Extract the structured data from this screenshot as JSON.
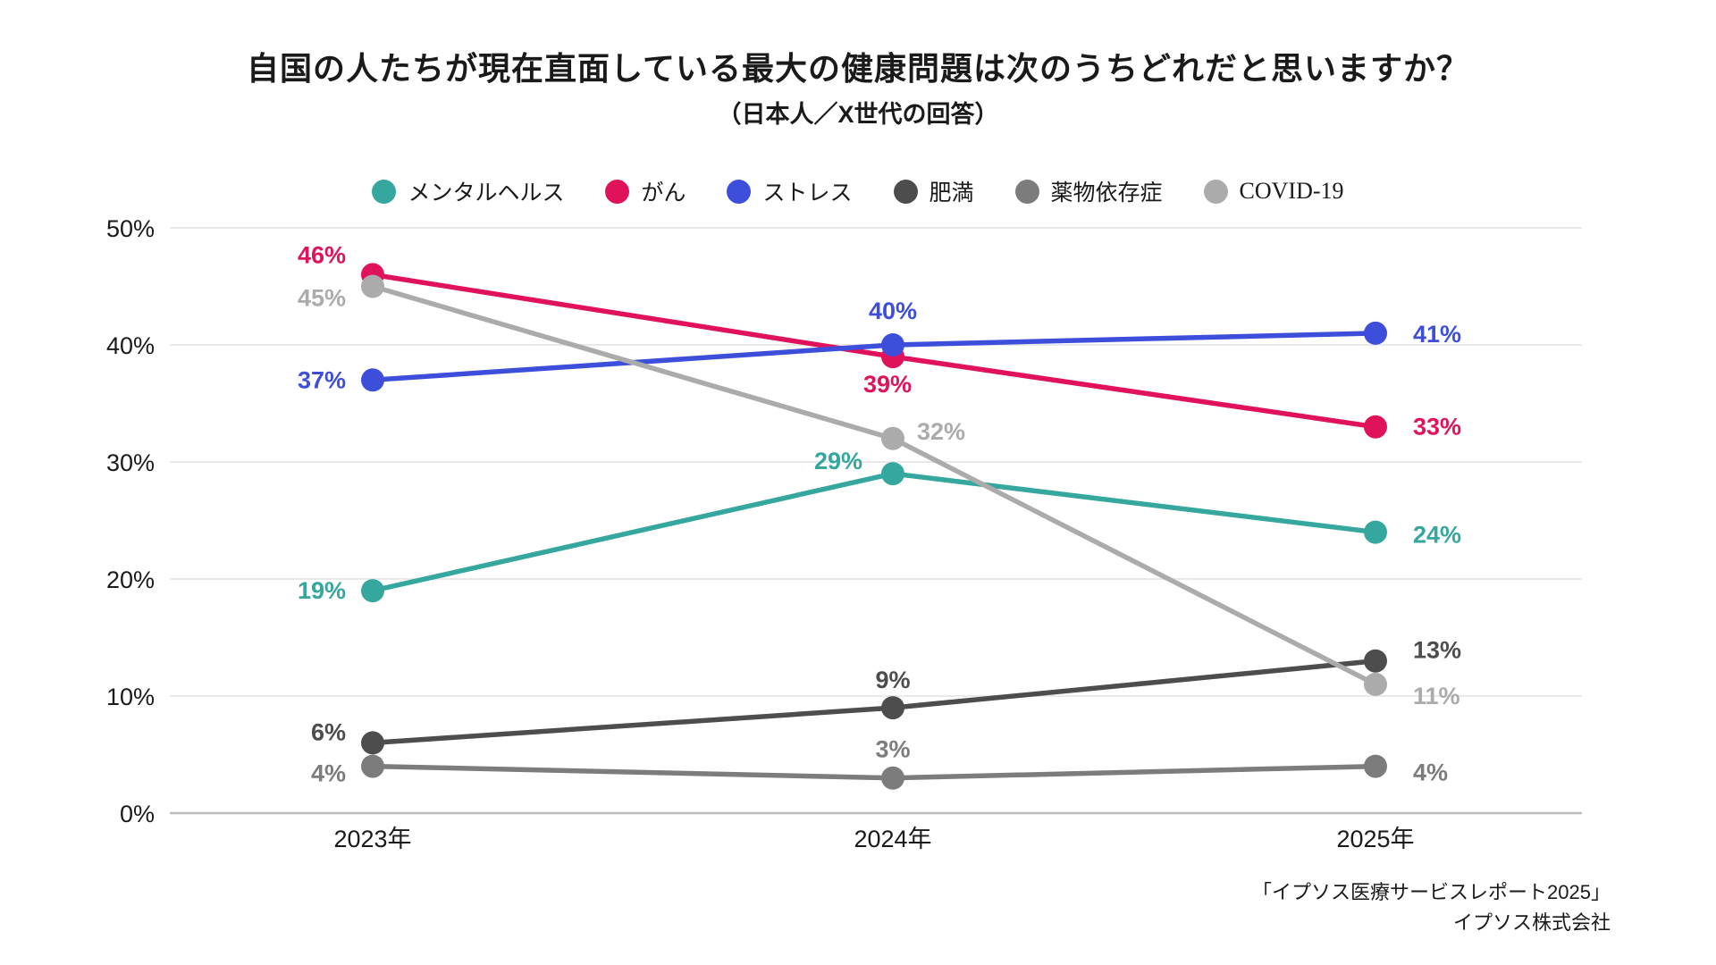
{
  "title": "自国の人たちが現在直面している最大の健康問題は次のうちどれだと思いますか？",
  "subtitle": "（日本人／X世代の回答）",
  "source": {
    "line1": "「イプソス医療サービスレポート2025」",
    "line2": "イプソス株式会社"
  },
  "chart_data": {
    "type": "line",
    "categories": [
      "2023年",
      "2024年",
      "2025年"
    ],
    "series": [
      {
        "name": "メンタルヘルス",
        "color": "#35A79E",
        "values": [
          19,
          29,
          24
        ]
      },
      {
        "name": "がん",
        "color": "#E1125C",
        "values": [
          46,
          39,
          33
        ]
      },
      {
        "name": "ストレス",
        "color": "#3D4EDB",
        "values": [
          37,
          40,
          41
        ]
      },
      {
        "name": "肥満",
        "color": "#4D4D4D",
        "values": [
          6,
          9,
          13
        ]
      },
      {
        "name": "薬物依存症",
        "color": "#7C7C7C",
        "values": [
          4,
          3,
          4
        ]
      },
      {
        "name": "COVID-19",
        "color": "#ABABAB",
        "values": [
          45,
          32,
          11
        ]
      }
    ],
    "ylim": [
      0,
      50
    ],
    "yticks": [
      0,
      10,
      20,
      30,
      40,
      50
    ],
    "ytick_suffix": "%",
    "value_label_suffix": "%",
    "grid": true,
    "legend_position": "top"
  }
}
